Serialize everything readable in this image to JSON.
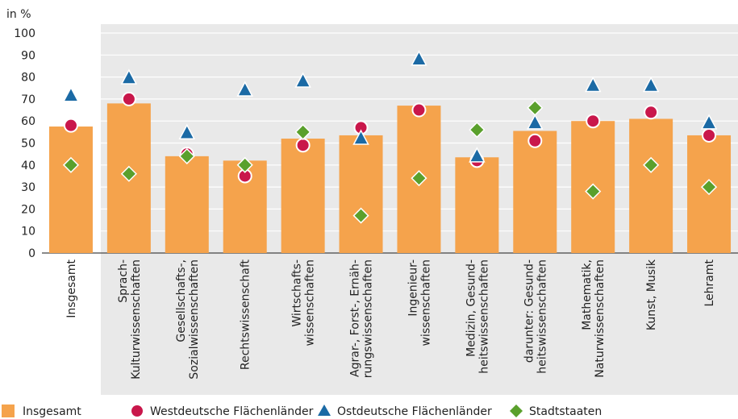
{
  "chart_data": {
    "type": "bar",
    "y_label": "in %",
    "categories": [
      "Insgesamt",
      "Sprach-\nKulturwissenschaften",
      "Gesellschafts-,\nSozialwissenschaften",
      "Rechtswissenschaft",
      "Wirtschafts-\nwissenschaften",
      "Agrar-, Forst-, Ernäh-\nrungswissenschaften",
      "Ingenieur-\nwissenschaften",
      "Medizin, Gesund-\nheitswissenschaften",
      "darunter: Gesund-\nheitswissenschaften",
      "Mathematik,\nNaturwissenschaften",
      "Kunst, Musik",
      "Lehramt"
    ],
    "series": [
      {
        "name": "Insgesamt",
        "color": "#f5a34c",
        "marker": "bar",
        "values": [
          57.5,
          68,
          44,
          42,
          52,
          53.5,
          67,
          43.5,
          55.5,
          60,
          61,
          53.5
        ]
      },
      {
        "name": "Westdeutsche Flächenländer",
        "color": "#c9174b",
        "marker": "circle",
        "values": [
          58,
          70,
          45,
          35,
          49,
          57,
          65,
          42,
          51,
          60,
          64,
          53.5
        ]
      },
      {
        "name": "Ostdeutsche Flächenländer",
        "color": "#1b6aa5",
        "marker": "triangle",
        "values": [
          71.5,
          79.5,
          54.5,
          74,
          78,
          52,
          88,
          44,
          59,
          76,
          76,
          59
        ]
      },
      {
        "name": "Stadtstaaten",
        "color": "#5aa02c",
        "marker": "diamond",
        "values": [
          40,
          36,
          44,
          40,
          55,
          17,
          34,
          56,
          66,
          28,
          40,
          30
        ]
      }
    ],
    "ylim": [
      0,
      100
    ],
    "yticks": [
      0,
      10,
      20,
      30,
      40,
      50,
      60,
      70,
      80,
      90,
      100
    ],
    "grid": true
  }
}
